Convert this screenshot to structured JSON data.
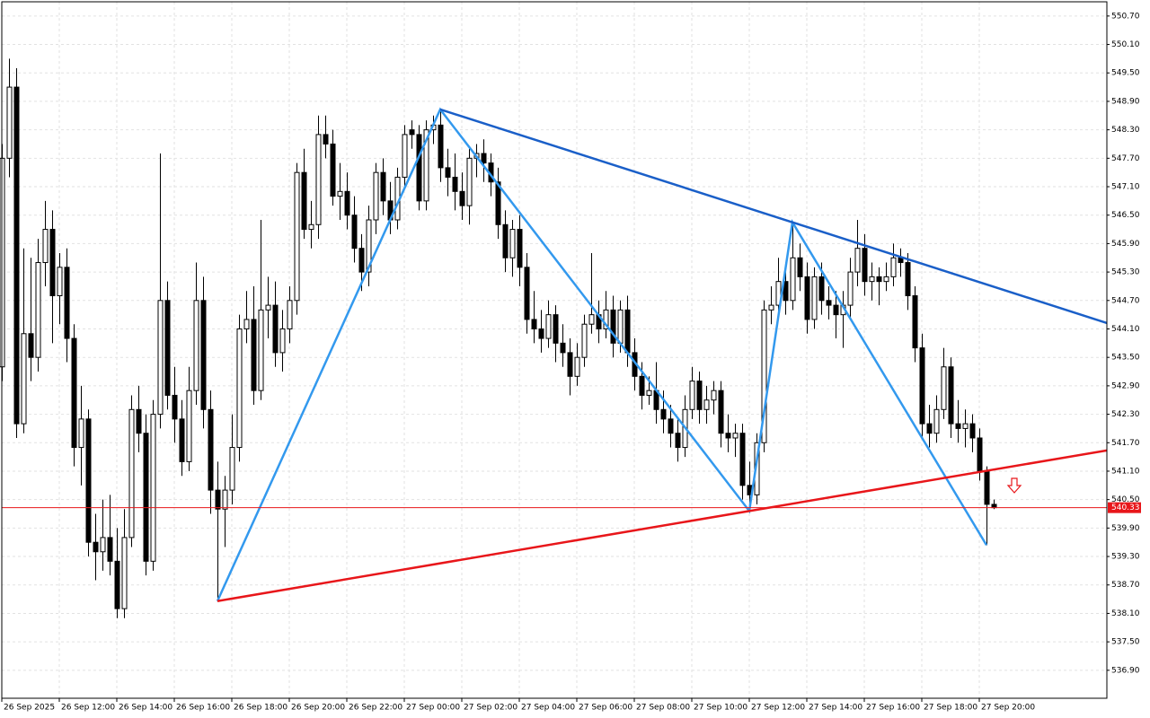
{
  "chart_data": {
    "type": "candlestick",
    "categories": [
      "26 Sep 2025",
      null,
      null,
      null,
      null,
      null,
      null,
      null,
      "26 Sep 12:00",
      null,
      null,
      null,
      null,
      null,
      null,
      null,
      "26 Sep 14:00",
      null,
      null,
      null,
      null,
      null,
      null,
      null,
      "26 Sep 16:00",
      null,
      null,
      null,
      null,
      null,
      null,
      null,
      "26 Sep 18:00",
      null,
      null,
      null,
      null,
      null,
      null,
      null,
      "26 Sep 20:00",
      null,
      null,
      null,
      null,
      null,
      null,
      null,
      "26 Sep 22:00",
      null,
      null,
      null,
      null,
      null,
      null,
      null,
      "27 Sep 00:00",
      null,
      null,
      null,
      null,
      null,
      null,
      null,
      "27 Sep 02:00",
      null,
      null,
      null,
      null,
      null,
      null,
      null,
      "27 Sep 04:00",
      null,
      null,
      null,
      null,
      null,
      null,
      null,
      "27 Sep 06:00",
      null,
      null,
      null,
      null,
      null,
      null,
      null,
      "27 Sep 08:00",
      null,
      null,
      null,
      null,
      null,
      null,
      null,
      "27 Sep 10:00",
      null,
      null,
      null,
      null,
      null,
      null,
      null,
      "27 Sep 12:00",
      null,
      null,
      null,
      null,
      null,
      null,
      null,
      "27 Sep 14:00",
      null,
      null,
      null,
      null,
      null,
      null,
      null,
      "27 Sep 16:00",
      null,
      null,
      null,
      null,
      null,
      null,
      null,
      "27 Sep 18:00",
      null,
      null,
      null,
      null,
      null,
      null,
      null,
      "27 Sep 20:00",
      null,
      null
    ],
    "ohlc": [
      [
        543.3,
        548.0,
        543.0,
        547.7
      ],
      [
        547.7,
        549.8,
        547.3,
        549.2
      ],
      [
        549.2,
        549.6,
        541.8,
        542.1
      ],
      [
        542.1,
        545.8,
        541.9,
        544.0
      ],
      [
        544.0,
        545.6,
        543.0,
        543.5
      ],
      [
        543.5,
        546.0,
        543.2,
        545.5
      ],
      [
        545.5,
        546.8,
        545.0,
        546.2
      ],
      [
        546.2,
        546.6,
        543.8,
        544.8
      ],
      [
        544.8,
        545.7,
        544.2,
        545.4
      ],
      [
        545.4,
        545.8,
        543.4,
        543.9
      ],
      [
        543.9,
        544.2,
        541.2,
        541.6
      ],
      [
        541.6,
        542.9,
        540.8,
        542.2
      ],
      [
        542.2,
        542.4,
        539.3,
        539.6
      ],
      [
        539.6,
        540.2,
        538.8,
        539.4
      ],
      [
        539.4,
        540.5,
        539.0,
        539.7
      ],
      [
        539.7,
        540.6,
        538.9,
        539.2
      ],
      [
        539.2,
        539.9,
        538.0,
        538.2
      ],
      [
        538.2,
        540.3,
        538.0,
        539.7
      ],
      [
        539.7,
        542.7,
        539.5,
        542.4
      ],
      [
        542.4,
        542.9,
        541.5,
        541.9
      ],
      [
        541.9,
        542.3,
        538.9,
        539.2
      ],
      [
        539.2,
        542.6,
        539.0,
        542.3
      ],
      [
        542.3,
        547.8,
        542.0,
        544.7
      ],
      [
        544.7,
        545.1,
        542.4,
        542.7
      ],
      [
        542.7,
        543.3,
        541.7,
        542.2
      ],
      [
        542.2,
        542.6,
        541.0,
        541.3
      ],
      [
        541.3,
        543.3,
        541.1,
        542.8
      ],
      [
        542.8,
        545.5,
        542.5,
        544.7
      ],
      [
        544.7,
        545.2,
        542.0,
        542.4
      ],
      [
        542.4,
        542.8,
        540.2,
        540.7
      ],
      [
        540.7,
        541.3,
        538.36,
        540.3
      ],
      [
        540.3,
        541.0,
        539.5,
        540.7
      ],
      [
        540.7,
        542.3,
        540.4,
        541.6
      ],
      [
        541.6,
        544.4,
        541.3,
        544.1
      ],
      [
        544.1,
        544.9,
        543.8,
        544.3
      ],
      [
        544.3,
        545.0,
        542.5,
        542.8
      ],
      [
        542.8,
        546.4,
        542.6,
        544.5
      ],
      [
        544.5,
        545.2,
        543.9,
        544.6
      ],
      [
        544.6,
        545.1,
        543.3,
        543.6
      ],
      [
        543.6,
        544.5,
        543.2,
        544.1
      ],
      [
        544.1,
        545.0,
        543.8,
        544.7
      ],
      [
        544.7,
        547.6,
        544.4,
        547.4
      ],
      [
        547.4,
        547.9,
        546.0,
        546.2
      ],
      [
        546.2,
        546.8,
        545.8,
        546.3
      ],
      [
        546.3,
        548.6,
        546.0,
        548.2
      ],
      [
        548.2,
        548.6,
        547.7,
        548.0
      ],
      [
        548.0,
        548.3,
        546.7,
        546.9
      ],
      [
        546.9,
        547.6,
        546.4,
        547.0
      ],
      [
        547.0,
        547.4,
        546.2,
        546.5
      ],
      [
        546.5,
        546.9,
        545.5,
        545.8
      ],
      [
        545.8,
        546.1,
        544.9,
        545.3
      ],
      [
        545.3,
        546.7,
        545.0,
        546.4
      ],
      [
        546.4,
        547.6,
        546.1,
        547.4
      ],
      [
        547.4,
        547.7,
        546.5,
        546.8
      ],
      [
        546.8,
        547.2,
        546.1,
        546.4
      ],
      [
        546.4,
        547.5,
        546.2,
        547.3
      ],
      [
        547.3,
        548.4,
        547.1,
        548.2
      ],
      [
        548.3,
        548.5,
        547.9,
        548.2
      ],
      [
        548.2,
        548.4,
        546.6,
        546.8
      ],
      [
        546.8,
        548.5,
        546.6,
        548.3
      ],
      [
        548.3,
        548.6,
        548.0,
        548.4
      ],
      [
        548.4,
        548.73,
        547.2,
        547.5
      ],
      [
        547.5,
        547.9,
        546.9,
        547.3
      ],
      [
        547.3,
        547.8,
        546.6,
        547.0
      ],
      [
        547.0,
        547.4,
        546.4,
        546.7
      ],
      [
        546.7,
        547.9,
        546.3,
        547.7
      ],
      [
        547.7,
        548.0,
        547.3,
        547.8
      ],
      [
        547.8,
        548.1,
        547.2,
        547.6
      ],
      [
        547.6,
        547.8,
        546.9,
        547.2
      ],
      [
        547.2,
        547.5,
        546.0,
        546.3
      ],
      [
        546.3,
        546.6,
        545.3,
        545.6
      ],
      [
        545.6,
        546.4,
        545.2,
        546.2
      ],
      [
        546.2,
        546.5,
        545.0,
        545.4
      ],
      [
        545.4,
        545.7,
        544.0,
        544.3
      ],
      [
        544.3,
        544.9,
        543.8,
        544.1
      ],
      [
        544.1,
        544.5,
        543.6,
        543.9
      ],
      [
        543.9,
        544.7,
        543.7,
        544.4
      ],
      [
        544.4,
        544.6,
        543.4,
        543.8
      ],
      [
        543.8,
        544.2,
        543.3,
        543.6
      ],
      [
        543.6,
        543.9,
        542.7,
        543.1
      ],
      [
        543.1,
        543.8,
        542.9,
        543.5
      ],
      [
        543.5,
        544.4,
        543.3,
        544.2
      ],
      [
        544.2,
        545.7,
        544.0,
        544.4
      ],
      [
        544.4,
        544.7,
        543.8,
        544.1
      ],
      [
        544.1,
        544.9,
        543.9,
        544.5
      ],
      [
        544.5,
        544.8,
        543.5,
        543.8
      ],
      [
        543.8,
        544.7,
        543.6,
        544.5
      ],
      [
        544.5,
        544.8,
        543.3,
        543.6
      ],
      [
        543.6,
        543.9,
        542.8,
        543.1
      ],
      [
        543.1,
        543.4,
        542.4,
        542.7
      ],
      [
        542.7,
        543.1,
        542.5,
        542.8
      ],
      [
        542.8,
        543.4,
        542.1,
        542.4
      ],
      [
        542.4,
        542.8,
        541.9,
        542.2
      ],
      [
        542.2,
        542.5,
        541.6,
        541.9
      ],
      [
        541.9,
        542.2,
        541.3,
        541.6
      ],
      [
        541.6,
        542.7,
        541.4,
        542.4
      ],
      [
        542.4,
        543.3,
        542.2,
        543.0
      ],
      [
        543.0,
        543.2,
        542.1,
        542.4
      ],
      [
        542.4,
        542.9,
        542.1,
        542.6
      ],
      [
        542.6,
        543.0,
        542.3,
        542.8
      ],
      [
        542.8,
        543.0,
        541.6,
        541.9
      ],
      [
        541.9,
        542.3,
        541.5,
        541.8
      ],
      [
        541.8,
        542.1,
        541.4,
        541.9
      ],
      [
        541.9,
        542.1,
        540.5,
        540.8
      ],
      [
        540.8,
        541.3,
        540.26,
        540.6
      ],
      [
        540.6,
        541.9,
        540.4,
        541.7
      ],
      [
        541.7,
        544.7,
        541.5,
        544.5
      ],
      [
        544.5,
        545.0,
        544.2,
        544.6
      ],
      [
        544.6,
        545.6,
        544.3,
        545.1
      ],
      [
        545.1,
        545.4,
        544.4,
        544.7
      ],
      [
        544.7,
        546.35,
        544.5,
        545.6
      ],
      [
        545.6,
        545.9,
        544.9,
        545.2
      ],
      [
        545.2,
        545.5,
        544.0,
        544.3
      ],
      [
        544.3,
        545.4,
        544.1,
        545.2
      ],
      [
        545.2,
        545.5,
        544.4,
        544.7
      ],
      [
        544.7,
        545.0,
        544.3,
        544.6
      ],
      [
        544.6,
        544.9,
        543.9,
        544.4
      ],
      [
        544.4,
        544.9,
        543.7,
        544.6
      ],
      [
        544.6,
        545.6,
        544.3,
        545.3
      ],
      [
        545.3,
        546.4,
        545.0,
        545.8
      ],
      [
        545.8,
        546.1,
        544.8,
        545.1
      ],
      [
        545.1,
        545.5,
        544.7,
        545.2
      ],
      [
        545.2,
        545.4,
        544.6,
        545.1
      ],
      [
        545.1,
        545.5,
        544.9,
        545.2
      ],
      [
        545.2,
        545.9,
        545.0,
        545.6
      ],
      [
        545.6,
        545.8,
        545.2,
        545.5
      ],
      [
        545.5,
        545.7,
        544.5,
        544.8
      ],
      [
        544.8,
        545.0,
        543.4,
        543.7
      ],
      [
        543.7,
        544.0,
        541.8,
        542.1
      ],
      [
        542.1,
        542.5,
        541.6,
        541.9
      ],
      [
        541.9,
        542.7,
        541.7,
        542.4
      ],
      [
        542.4,
        543.7,
        542.2,
        543.3
      ],
      [
        543.3,
        543.5,
        541.8,
        542.1
      ],
      [
        542.1,
        542.6,
        541.7,
        542.0
      ],
      [
        542.0,
        542.4,
        541.6,
        542.1
      ],
      [
        542.1,
        542.3,
        541.5,
        541.8
      ],
      [
        541.8,
        542.0,
        540.9,
        541.1
      ],
      [
        541.1,
        541.2,
        539.54,
        540.4
      ],
      [
        540.4,
        540.5,
        540.3,
        540.33
      ]
    ],
    "up_color": "#ffffff",
    "down_color": "#000000",
    "current_price": 540.33,
    "current_price_color": "#e8161a",
    "lines": [
      {
        "color": "#3399ee",
        "extend": false,
        "x": [
          30,
          61,
          104,
          110,
          137
        ],
        "y": [
          538.36,
          548.73,
          540.26,
          546.35,
          539.54
        ]
      },
      {
        "color": "#1a5fc8",
        "extend": true,
        "x": [
          61,
          110
        ],
        "y": [
          548.73,
          546.35
        ]
      },
      {
        "color": "#e8161a",
        "extend": true,
        "x": [
          30,
          104
        ],
        "y": [
          538.36,
          540.26
        ]
      }
    ],
    "ylim": [
      536.31,
      551.0
    ],
    "yticks": [
      {
        "value": 550.7,
        "label": "550.70"
      },
      {
        "value": 550.1,
        "label": "550.10"
      },
      {
        "value": 549.5,
        "label": "549.50"
      },
      {
        "value": 548.9,
        "label": "548.90"
      },
      {
        "value": 548.3,
        "label": "548.30"
      },
      {
        "value": 547.7,
        "label": "547.70"
      },
      {
        "value": 547.1,
        "label": "547.10"
      },
      {
        "value": 546.5,
        "label": "546.50"
      },
      {
        "value": 545.9,
        "label": "545.90"
      },
      {
        "value": 545.3,
        "label": "545.30"
      },
      {
        "value": 544.7,
        "label": "544.70"
      },
      {
        "value": 544.1,
        "label": "544.10"
      },
      {
        "value": 543.5,
        "label": "543.50"
      },
      {
        "value": 542.9,
        "label": "542.90"
      },
      {
        "value": 542.3,
        "label": "542.30"
      },
      {
        "value": 541.7,
        "label": "541.70"
      },
      {
        "value": 541.1,
        "label": "541.10"
      },
      {
        "value": 540.5,
        "label": "540.50"
      },
      {
        "value": 539.9,
        "label": "539.90"
      },
      {
        "value": 539.3,
        "label": "539.30"
      },
      {
        "value": 538.7,
        "label": "538.70"
      },
      {
        "value": 538.1,
        "label": "538.10"
      },
      {
        "value": 537.5,
        "label": "537.50"
      },
      {
        "value": 536.9,
        "label": "536.90"
      }
    ],
    "grid": true
  }
}
